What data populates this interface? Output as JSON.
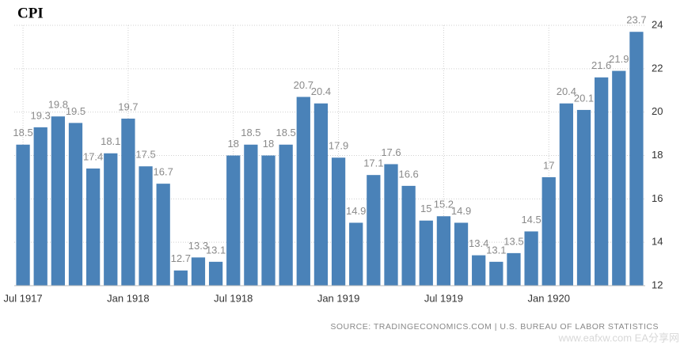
{
  "chart_data": {
    "type": "bar",
    "title": "CPI",
    "categories": [
      "Jul 1917",
      null,
      null,
      null,
      null,
      null,
      "Jan 1918",
      null,
      null,
      null,
      null,
      null,
      "Jul 1918",
      null,
      null,
      null,
      null,
      null,
      "Jan 1919",
      null,
      null,
      null,
      null,
      null,
      "Jul 1919",
      null,
      null,
      null,
      null,
      null,
      "Jan 1920",
      null,
      null,
      null,
      null,
      null
    ],
    "values": [
      18.5,
      19.3,
      19.8,
      19.5,
      17.4,
      18.1,
      19.7,
      17.5,
      16.7,
      12.7,
      13.3,
      13.1,
      18,
      18.5,
      18,
      18.5,
      20.7,
      20.4,
      17.9,
      14.9,
      17.1,
      17.6,
      16.6,
      15,
      15.2,
      14.9,
      13.4,
      13.1,
      13.5,
      14.5,
      17,
      20.4,
      20.1,
      21.6,
      21.9,
      23.7
    ],
    "color": "#4a82b8",
    "ylim": [
      12,
      24
    ],
    "yticks": [
      12,
      14,
      16,
      18,
      20,
      22,
      24
    ],
    "grid": true,
    "source": "SOURCE: TRADINGECONOMICS.COM | U.S. BUREAU OF LABOR STATISTICS",
    "watermark": "www.eafxw.com EA分享网"
  }
}
